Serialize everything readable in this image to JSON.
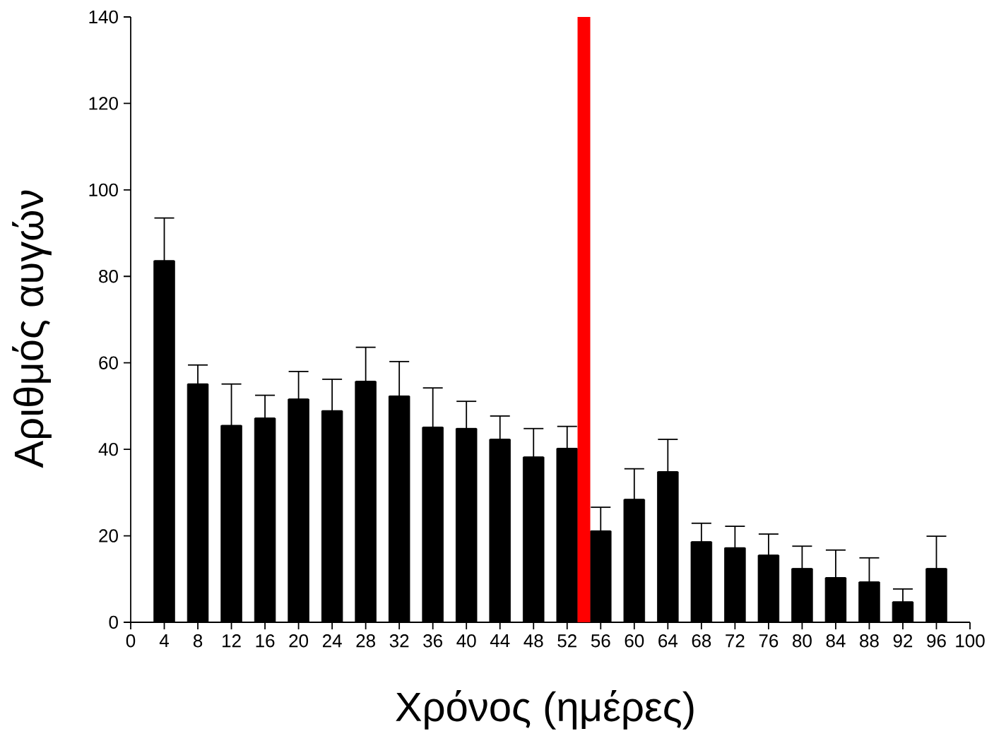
{
  "chart_data": {
    "type": "bar",
    "xlabel": "Χρόνος (ημέρες)",
    "ylabel": "Αριθμός αυγών",
    "x": [
      4,
      8,
      12,
      16,
      20,
      24,
      28,
      32,
      36,
      40,
      44,
      48,
      52,
      56,
      60,
      64,
      68,
      72,
      76,
      80,
      84,
      88,
      92,
      96
    ],
    "values": [
      83.6,
      55.1,
      45.5,
      47.2,
      51.6,
      48.9,
      55.7,
      52.3,
      45.1,
      44.8,
      42.3,
      38.2,
      40.2,
      21.1,
      28.4,
      34.8,
      18.6,
      17.2,
      15.5,
      12.4,
      10.3,
      9.3,
      4.7,
      12.4
    ],
    "errors": [
      [
        83.6,
        93.5
      ],
      [
        55.1,
        59.5
      ],
      [
        45.5,
        55.1
      ],
      [
        47.2,
        52.5
      ],
      [
        51.6,
        58
      ],
      [
        48.9,
        56.2
      ],
      [
        55.7,
        63.6
      ],
      [
        52.3,
        60.3
      ],
      [
        45.1,
        54.2
      ],
      [
        44.8,
        51.1
      ],
      [
        42.3,
        47.7
      ],
      [
        38.2,
        44.8
      ],
      [
        40.2,
        45.3
      ],
      [
        21.1,
        26.6
      ],
      [
        28.4,
        35.5
      ],
      [
        34.8,
        42.3
      ],
      [
        18.6,
        22.9
      ],
      [
        17.2,
        22.2
      ],
      [
        15.5,
        20.4
      ],
      [
        12.4,
        17.6
      ],
      [
        10.3,
        16.7
      ],
      [
        9.3,
        14.9
      ],
      [
        4.7,
        7.7
      ],
      [
        12.4,
        19.9
      ]
    ],
    "color": "#000000",
    "xlim": [
      0,
      100
    ],
    "xticks": [
      0,
      4,
      8,
      12,
      16,
      20,
      24,
      28,
      32,
      36,
      40,
      44,
      48,
      52,
      56,
      60,
      64,
      68,
      72,
      76,
      80,
      84,
      88,
      92,
      96,
      100
    ],
    "ylim": [
      0,
      140
    ],
    "yticks": [
      0,
      20,
      40,
      60,
      80,
      100,
      120,
      140
    ],
    "ref_lines": [
      {
        "axis": "x",
        "value": 54,
        "color": "#ff0000"
      }
    ]
  }
}
